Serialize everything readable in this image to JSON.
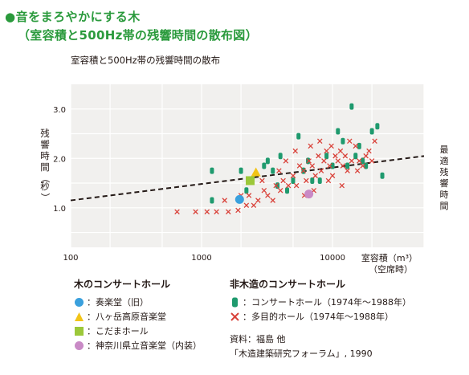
{
  "heading": {
    "line1": "●音をまろやかにする木",
    "line2": "（室容積と500Hz帯の残響時間の散布図）"
  },
  "chart_data": {
    "type": "scatter",
    "title": "室容積と500Hz帯の残響時間の散布",
    "xlabel": "室容積（m³）",
    "xlabel_note": "（空席時）",
    "ylabel": "残響時間（秒）",
    "x_scale": "log",
    "xlim": [
      100,
      50000
    ],
    "ylim": [
      0.2,
      3.5
    ],
    "xticks": [
      "100",
      "1000",
      "10000"
    ],
    "xtick_values": [
      100,
      1000,
      10000
    ],
    "yticks": [
      "1.0",
      "2.0",
      "3.0"
    ],
    "ytick_values": [
      1.0,
      2.0,
      3.0
    ],
    "grid": true,
    "optimum_line": {
      "label": "最適残響時間",
      "x": [
        100,
        50000
      ],
      "y": [
        1.15,
        1.95
      ]
    },
    "series": [
      {
        "name": "コンサートホール（1974年〜1988年）",
        "marker": "green-capsule",
        "color": "#1f9a6e",
        "points": [
          [
            1200,
            1.75
          ],
          [
            1200,
            1.15
          ],
          [
            2000,
            1.75
          ],
          [
            2200,
            1.35
          ],
          [
            2400,
            1.55
          ],
          [
            3000,
            1.85
          ],
          [
            3500,
            1.75
          ],
          [
            3800,
            1.45
          ],
          [
            4000,
            2.05
          ],
          [
            4500,
            1.35
          ],
          [
            5000,
            1.55
          ],
          [
            5500,
            2.45
          ],
          [
            6000,
            1.75
          ],
          [
            6500,
            1.95
          ],
          [
            7000,
            1.55
          ],
          [
            8000,
            1.55
          ],
          [
            9000,
            2.05
          ],
          [
            10000,
            1.85
          ],
          [
            11000,
            2.55
          ],
          [
            12000,
            2.35
          ],
          [
            13000,
            1.85
          ],
          [
            14000,
            3.05
          ],
          [
            15000,
            2.05
          ],
          [
            16000,
            2.25
          ],
          [
            17000,
            1.95
          ],
          [
            20000,
            2.55
          ],
          [
            22000,
            2.65
          ],
          [
            24000,
            1.65
          ],
          [
            18000,
            1.85
          ],
          [
            3200,
            1.95
          ]
        ]
      },
      {
        "name": "多目的ホール（1974年〜1988年）",
        "marker": "cross",
        "color": "#d9423a",
        "points": [
          [
            650,
            0.92
          ],
          [
            900,
            0.92
          ],
          [
            1100,
            0.92
          ],
          [
            1300,
            0.92
          ],
          [
            1600,
            0.92
          ],
          [
            1900,
            0.95
          ],
          [
            2200,
            1.05
          ],
          [
            2500,
            1.05
          ],
          [
            2300,
            1.25
          ],
          [
            2700,
            1.15
          ],
          [
            3000,
            1.35
          ],
          [
            3200,
            1.25
          ],
          [
            3500,
            1.15
          ],
          [
            3700,
            1.45
          ],
          [
            4000,
            1.35
          ],
          [
            4200,
            1.55
          ],
          [
            4600,
            1.45
          ],
          [
            5000,
            1.65
          ],
          [
            5300,
            1.45
          ],
          [
            5600,
            1.85
          ],
          [
            6000,
            1.75
          ],
          [
            6300,
            1.55
          ],
          [
            6600,
            1.95
          ],
          [
            7000,
            1.85
          ],
          [
            7400,
            1.65
          ],
          [
            7800,
            2.05
          ],
          [
            8200,
            1.75
          ],
          [
            8600,
            1.95
          ],
          [
            9000,
            2.15
          ],
          [
            9500,
            1.85
          ],
          [
            10000,
            1.65
          ],
          [
            10500,
            2.05
          ],
          [
            11000,
            1.95
          ],
          [
            11500,
            2.15
          ],
          [
            12000,
            1.85
          ],
          [
            12500,
            2.05
          ],
          [
            13000,
            1.75
          ],
          [
            14000,
            1.95
          ],
          [
            15000,
            2.25
          ],
          [
            16000,
            1.95
          ],
          [
            17000,
            1.85
          ],
          [
            18000,
            2.05
          ],
          [
            19000,
            2.15
          ],
          [
            20000,
            1.95
          ],
          [
            21000,
            2.35
          ],
          [
            5200,
            2.15
          ],
          [
            6800,
            2.25
          ],
          [
            8000,
            2.35
          ],
          [
            9800,
            2.25
          ],
          [
            4400,
            1.95
          ],
          [
            3900,
            1.75
          ],
          [
            2900,
            1.55
          ],
          [
            2000,
            1.25
          ],
          [
            1500,
            1.15
          ],
          [
            7200,
            1.35
          ],
          [
            9300,
            1.55
          ],
          [
            11800,
            1.45
          ],
          [
            13500,
            2.35
          ],
          [
            15500,
            1.75
          ],
          [
            6100,
            1.25
          ]
        ]
      },
      {
        "name": "奏楽堂（旧）",
        "marker": "circle",
        "color": "#3aa0dd",
        "points": [
          [
            1950,
            1.17
          ]
        ]
      },
      {
        "name": "八ヶ岳高原音楽堂",
        "marker": "triangle",
        "color": "#f2c418",
        "points": [
          [
            2600,
            1.72
          ]
        ]
      },
      {
        "name": "こだまホール",
        "marker": "square",
        "color": "#9cc83a",
        "points": [
          [
            2350,
            1.55
          ]
        ]
      },
      {
        "name": "神奈川県立音楽堂（内装）",
        "marker": "circle",
        "color": "#c98ac6",
        "points": [
          [
            6600,
            1.28
          ]
        ]
      }
    ]
  },
  "legend": {
    "wood_title": "木のコンサートホール",
    "wood_items": [
      "：奏楽堂（旧）",
      "：八ヶ岳高原音楽堂",
      "：こだまホール",
      "：神奈川県立音楽堂（内装）"
    ],
    "nonwood_title": "非木造のコンサートホール",
    "nonwood_items": [
      "：コンサートホール（1974年〜1988年）",
      "：多目的ホール（1974年〜1988年）"
    ]
  },
  "source": {
    "line1": "資料：福島 他",
    "line2": "「木造建築研究フォーラム」, 1990"
  }
}
